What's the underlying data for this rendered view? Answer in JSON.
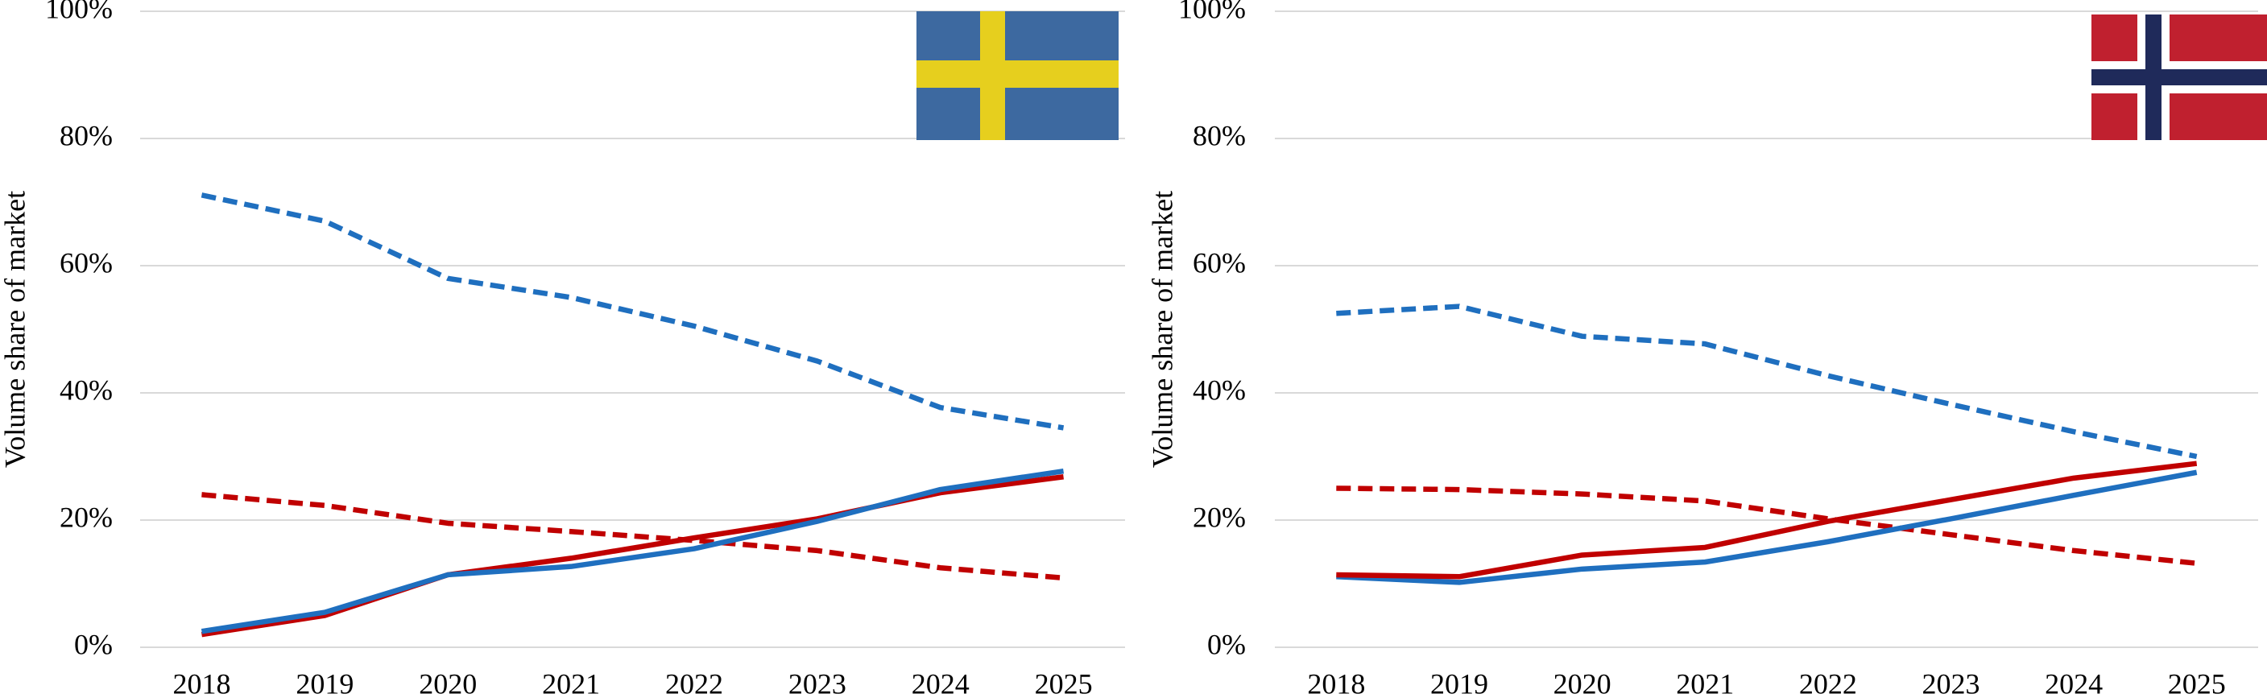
{
  "chart_data": [
    {
      "type": "line",
      "y_label": "Volume share of market",
      "categories": [
        "2018",
        "2019",
        "2020",
        "2021",
        "2022",
        "2023",
        "2024",
        "2025"
      ],
      "ylim": [
        0,
        100
      ],
      "yticks": [
        {
          "value": 0,
          "label": "0%"
        },
        {
          "value": 20,
          "label": "20%"
        },
        {
          "value": 40,
          "label": "40%"
        },
        {
          "value": 60,
          "label": "60%"
        },
        {
          "value": 80,
          "label": "80%"
        },
        {
          "value": 100,
          "label": "100%"
        }
      ],
      "grid": true,
      "series": [
        {
          "color": "#1f6fbf",
          "dashed": true,
          "values": [
            71.1,
            67,
            58,
            55,
            50.5,
            45,
            37.7,
            34.5
          ]
        },
        {
          "color": "#c00000",
          "dashed": true,
          "values": [
            24,
            22.3,
            19.5,
            18.2,
            16.8,
            15.2,
            12.5,
            10.9
          ]
        },
        {
          "color": "#c00000",
          "dashed": false,
          "values": [
            2,
            5,
            11.4,
            14,
            17.2,
            20.2,
            24.3,
            26.8
          ]
        },
        {
          "color": "#1f6fbf",
          "dashed": false,
          "values": [
            2.5,
            5.5,
            11.4,
            12.7,
            15.5,
            19.8,
            24.8,
            27.7
          ]
        }
      ]
    },
    {
      "type": "line",
      "y_label": "Volume share of market",
      "categories": [
        "2018",
        "2019",
        "2020",
        "2021",
        "2022",
        "2023",
        "2024",
        "2025"
      ],
      "ylim": [
        0,
        100
      ],
      "yticks": [
        {
          "value": 0,
          "label": "0%"
        },
        {
          "value": 20,
          "label": "20%"
        },
        {
          "value": 40,
          "label": "40%"
        },
        {
          "value": 60,
          "label": "60%"
        },
        {
          "value": 80,
          "label": "80%"
        },
        {
          "value": 100,
          "label": "100%"
        }
      ],
      "grid": true,
      "series": [
        {
          "color": "#1f6fbf",
          "dashed": true,
          "values": [
            52.5,
            53.6,
            48.9,
            47.7,
            42.7,
            38.2,
            33.9,
            30
          ]
        },
        {
          "color": "#c00000",
          "dashed": true,
          "values": [
            25,
            24.8,
            24.1,
            23,
            20.2,
            17.7,
            15.2,
            13.2
          ]
        },
        {
          "color": "#1f6fbf",
          "dashed": false,
          "values": [
            11.1,
            10.2,
            12.3,
            13.4,
            16.6,
            20.2,
            23.9,
            27.5
          ]
        },
        {
          "color": "#c00000",
          "dashed": false,
          "values": [
            11.4,
            11.1,
            14.5,
            15.7,
            19.8,
            23.2,
            26.6,
            28.9
          ]
        }
      ]
    }
  ]
}
